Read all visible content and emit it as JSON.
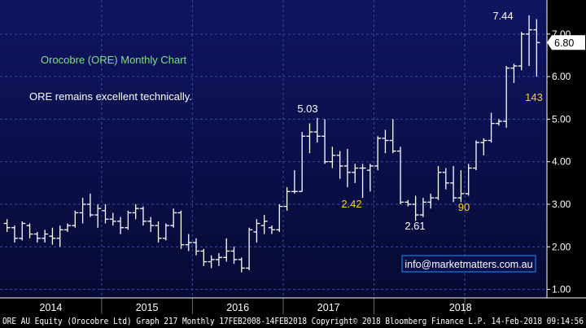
{
  "chart_data": {
    "type": "ohlc",
    "title": "Orocobre (ORE) Monthly Chart",
    "subtitle": "ORE remains excellent technically.",
    "ylim": [
      0.8,
      7.8
    ],
    "yticks": [
      "1.00",
      "2.00",
      "3.00",
      "4.00",
      "5.00",
      "6.00",
      "7.00"
    ],
    "years": [
      "2014",
      "2015",
      "2016",
      "2017",
      "2018"
    ],
    "last_price": "6.80",
    "annotations": [
      {
        "text": "7.44",
        "color": "#ffffff"
      },
      {
        "text": "5.03",
        "color": "#ffffff"
      },
      {
        "text": "2.42",
        "color": "#ffd21a"
      },
      {
        "text": "2.61",
        "color": "#ffffff"
      },
      {
        "text": "90",
        "color": "#ffd21a"
      },
      {
        "text": "143",
        "color": "#ffd21a"
      }
    ],
    "watermark": "info@marketmatters.com.au",
    "footer": "ORE AU Equity (Orocobre Ltd) Graph 217  Monthly 17FEB2008-14FEB2018  Copyright© 2018 Bloomberg Finance L.P.  14-Feb-2018 09:14:56",
    "bars": [
      {
        "o": 2.55,
        "h": 2.65,
        "l": 2.35,
        "c": 2.45
      },
      {
        "o": 2.45,
        "h": 2.5,
        "l": 2.1,
        "c": 2.2
      },
      {
        "o": 2.2,
        "h": 2.6,
        "l": 2.15,
        "c": 2.55
      },
      {
        "o": 2.5,
        "h": 2.55,
        "l": 2.2,
        "c": 2.3
      },
      {
        "o": 2.3,
        "h": 2.35,
        "l": 2.1,
        "c": 2.2
      },
      {
        "o": 2.2,
        "h": 2.4,
        "l": 2.1,
        "c": 2.3
      },
      {
        "o": 2.25,
        "h": 2.45,
        "l": 2.05,
        "c": 2.2
      },
      {
        "o": 2.2,
        "h": 2.5,
        "l": 2.0,
        "c": 2.4
      },
      {
        "o": 2.4,
        "h": 2.55,
        "l": 2.35,
        "c": 2.5
      },
      {
        "o": 2.5,
        "h": 2.85,
        "l": 2.45,
        "c": 2.8
      },
      {
        "o": 2.8,
        "h": 3.15,
        "l": 2.55,
        "c": 3.0
      },
      {
        "o": 3.0,
        "h": 3.25,
        "l": 2.7,
        "c": 2.75
      },
      {
        "o": 2.75,
        "h": 3.0,
        "l": 2.45,
        "c": 2.9
      },
      {
        "o": 2.85,
        "h": 3.0,
        "l": 2.55,
        "c": 2.65
      },
      {
        "o": 2.65,
        "h": 2.8,
        "l": 2.5,
        "c": 2.6
      },
      {
        "o": 2.6,
        "h": 2.7,
        "l": 2.3,
        "c": 2.45
      },
      {
        "o": 2.45,
        "h": 2.85,
        "l": 2.4,
        "c": 2.8
      },
      {
        "o": 2.8,
        "h": 3.0,
        "l": 2.65,
        "c": 2.9
      },
      {
        "o": 2.9,
        "h": 2.95,
        "l": 2.5,
        "c": 2.6
      },
      {
        "o": 2.6,
        "h": 2.7,
        "l": 2.35,
        "c": 2.5
      },
      {
        "o": 2.5,
        "h": 2.6,
        "l": 2.1,
        "c": 2.2
      },
      {
        "o": 2.2,
        "h": 2.55,
        "l": 2.15,
        "c": 2.5
      },
      {
        "o": 2.5,
        "h": 2.9,
        "l": 2.45,
        "c": 2.8
      },
      {
        "o": 2.8,
        "h": 2.85,
        "l": 1.95,
        "c": 2.05
      },
      {
        "o": 2.05,
        "h": 2.3,
        "l": 1.9,
        "c": 2.1
      },
      {
        "o": 2.1,
        "h": 2.2,
        "l": 1.8,
        "c": 1.9
      },
      {
        "o": 1.9,
        "h": 1.95,
        "l": 1.55,
        "c": 1.65
      },
      {
        "o": 1.65,
        "h": 1.8,
        "l": 1.5,
        "c": 1.7
      },
      {
        "o": 1.7,
        "h": 1.85,
        "l": 1.55,
        "c": 1.75
      },
      {
        "o": 1.75,
        "h": 2.2,
        "l": 1.65,
        "c": 1.9
      },
      {
        "o": 1.9,
        "h": 2.0,
        "l": 1.6,
        "c": 1.7
      },
      {
        "o": 1.7,
        "h": 1.75,
        "l": 1.4,
        "c": 1.5
      },
      {
        "o": 1.5,
        "h": 2.45,
        "l": 1.45,
        "c": 2.4
      },
      {
        "o": 2.35,
        "h": 2.65,
        "l": 2.1,
        "c": 2.55
      },
      {
        "o": 2.5,
        "h": 2.75,
        "l": 2.3,
        "c": 2.6
      },
      {
        "o": 2.45,
        "h": 2.5,
        "l": 2.3,
        "c": 2.4
      },
      {
        "o": 2.4,
        "h": 3.0,
        "l": 2.35,
        "c": 2.95
      },
      {
        "o": 2.95,
        "h": 3.4,
        "l": 2.85,
        "c": 3.3
      },
      {
        "o": 3.3,
        "h": 3.8,
        "l": 3.25,
        "c": 3.3
      },
      {
        "o": 3.3,
        "h": 4.7,
        "l": 3.3,
        "c": 4.6
      },
      {
        "o": 4.6,
        "h": 4.9,
        "l": 4.2,
        "c": 4.7
      },
      {
        "o": 4.7,
        "h": 5.03,
        "l": 4.45,
        "c": 4.6
      },
      {
        "o": 4.6,
        "h": 5.0,
        "l": 3.95,
        "c": 4.0
      },
      {
        "o": 4.0,
        "h": 4.35,
        "l": 3.85,
        "c": 4.15
      },
      {
        "o": 4.15,
        "h": 4.25,
        "l": 3.6,
        "c": 3.9
      },
      {
        "o": 3.9,
        "h": 4.3,
        "l": 3.4,
        "c": 3.75
      },
      {
        "o": 3.75,
        "h": 3.95,
        "l": 3.5,
        "c": 3.85
      },
      {
        "o": 3.85,
        "h": 3.95,
        "l": 3.15,
        "c": 3.85
      },
      {
        "o": 3.8,
        "h": 3.95,
        "l": 3.3,
        "c": 3.9
      },
      {
        "o": 3.9,
        "h": 4.6,
        "l": 3.8,
        "c": 4.55
      },
      {
        "o": 4.55,
        "h": 4.75,
        "l": 4.2,
        "c": 4.5
      },
      {
        "o": 4.5,
        "h": 5.0,
        "l": 4.2,
        "c": 4.25
      },
      {
        "o": 4.25,
        "h": 4.35,
        "l": 3.0,
        "c": 3.05
      },
      {
        "o": 3.05,
        "h": 3.1,
        "l": 2.95,
        "c": 3.0
      },
      {
        "o": 3.0,
        "h": 3.2,
        "l": 2.61,
        "c": 2.75
      },
      {
        "o": 2.75,
        "h": 3.15,
        "l": 2.7,
        "c": 3.05
      },
      {
        "o": 3.05,
        "h": 3.25,
        "l": 2.9,
        "c": 3.15
      },
      {
        "o": 3.15,
        "h": 3.9,
        "l": 3.1,
        "c": 3.75
      },
      {
        "o": 3.75,
        "h": 3.85,
        "l": 3.35,
        "c": 3.5
      },
      {
        "o": 3.5,
        "h": 3.9,
        "l": 3.05,
        "c": 3.15
      },
      {
        "o": 3.15,
        "h": 3.8,
        "l": 3.05,
        "c": 3.25
      },
      {
        "o": 3.25,
        "h": 3.95,
        "l": 3.2,
        "c": 3.85
      },
      {
        "o": 3.85,
        "h": 4.5,
        "l": 3.8,
        "c": 4.45
      },
      {
        "o": 4.45,
        "h": 4.55,
        "l": 4.15,
        "c": 4.5
      },
      {
        "o": 4.5,
        "h": 5.15,
        "l": 4.45,
        "c": 4.9
      },
      {
        "o": 4.9,
        "h": 5.0,
        "l": 4.85,
        "c": 4.95
      },
      {
        "o": 4.95,
        "h": 6.25,
        "l": 4.8,
        "c": 6.2
      },
      {
        "o": 6.2,
        "h": 6.3,
        "l": 5.85,
        "c": 6.25
      },
      {
        "o": 6.25,
        "h": 7.05,
        "l": 6.15,
        "c": 7.0
      },
      {
        "o": 7.0,
        "h": 7.44,
        "l": 6.25,
        "c": 7.1
      },
      {
        "o": 7.1,
        "h": 7.35,
        "l": 6.0,
        "c": 6.8
      }
    ]
  }
}
